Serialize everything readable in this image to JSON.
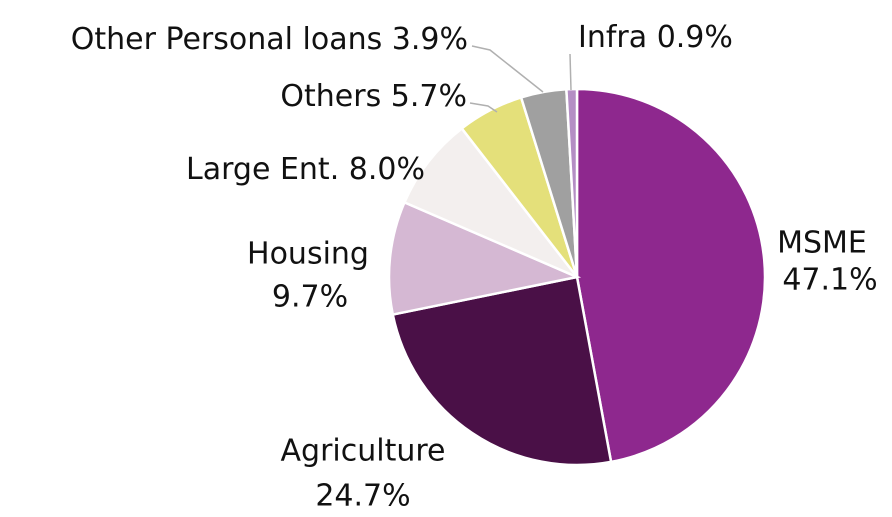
{
  "chart_data": {
    "type": "pie",
    "categories": [
      "MSME",
      "Agriculture",
      "Housing",
      "Large Ent.",
      "Others",
      "Other Personal loans",
      "Infra"
    ],
    "values": [
      47.1,
      24.7,
      9.7,
      8.0,
      5.7,
      3.9,
      0.9
    ],
    "value_labels": [
      "47.1%",
      "24.7%",
      "9.7%",
      "8.0%",
      "5.7%",
      "3.9%",
      "0.9%"
    ],
    "colors": [
      "#8e288e",
      "#4a1047",
      "#d5b8d3",
      "#f3efee",
      "#e4e07a",
      "#a0a0a0",
      "#b48ec4"
    ]
  }
}
